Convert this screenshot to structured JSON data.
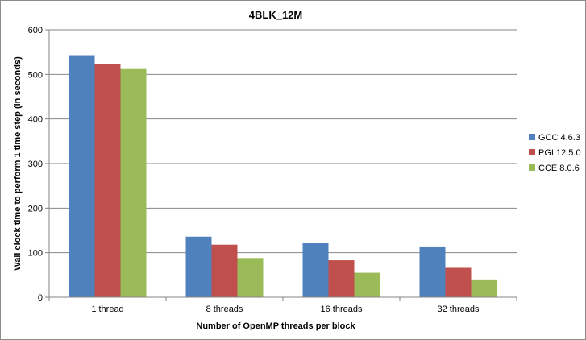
{
  "chart_data": {
    "type": "bar",
    "title": "4BLK_12M",
    "xlabel": "Number of OpenMP threads per block",
    "ylabel": "Wall clock time to perform 1 time step (in seconds)",
    "categories": [
      "1 thread",
      "8 threads",
      "16 threads",
      "32 threads"
    ],
    "series": [
      {
        "name": "GCC 4.6.3",
        "color": "#4f81bd",
        "values": [
          543,
          136,
          121,
          114
        ]
      },
      {
        "name": "PGI 12.5.0",
        "color": "#c0504d",
        "values": [
          524,
          118,
          83,
          66
        ]
      },
      {
        "name": "CCE 8.0.6",
        "color": "#9bbb59",
        "values": [
          512,
          88,
          55,
          40
        ]
      }
    ],
    "ylim": [
      0,
      600
    ],
    "yticks": [
      "0",
      "100",
      "200",
      "300",
      "400",
      "500",
      "600"
    ],
    "grid": true,
    "legend": "right"
  }
}
